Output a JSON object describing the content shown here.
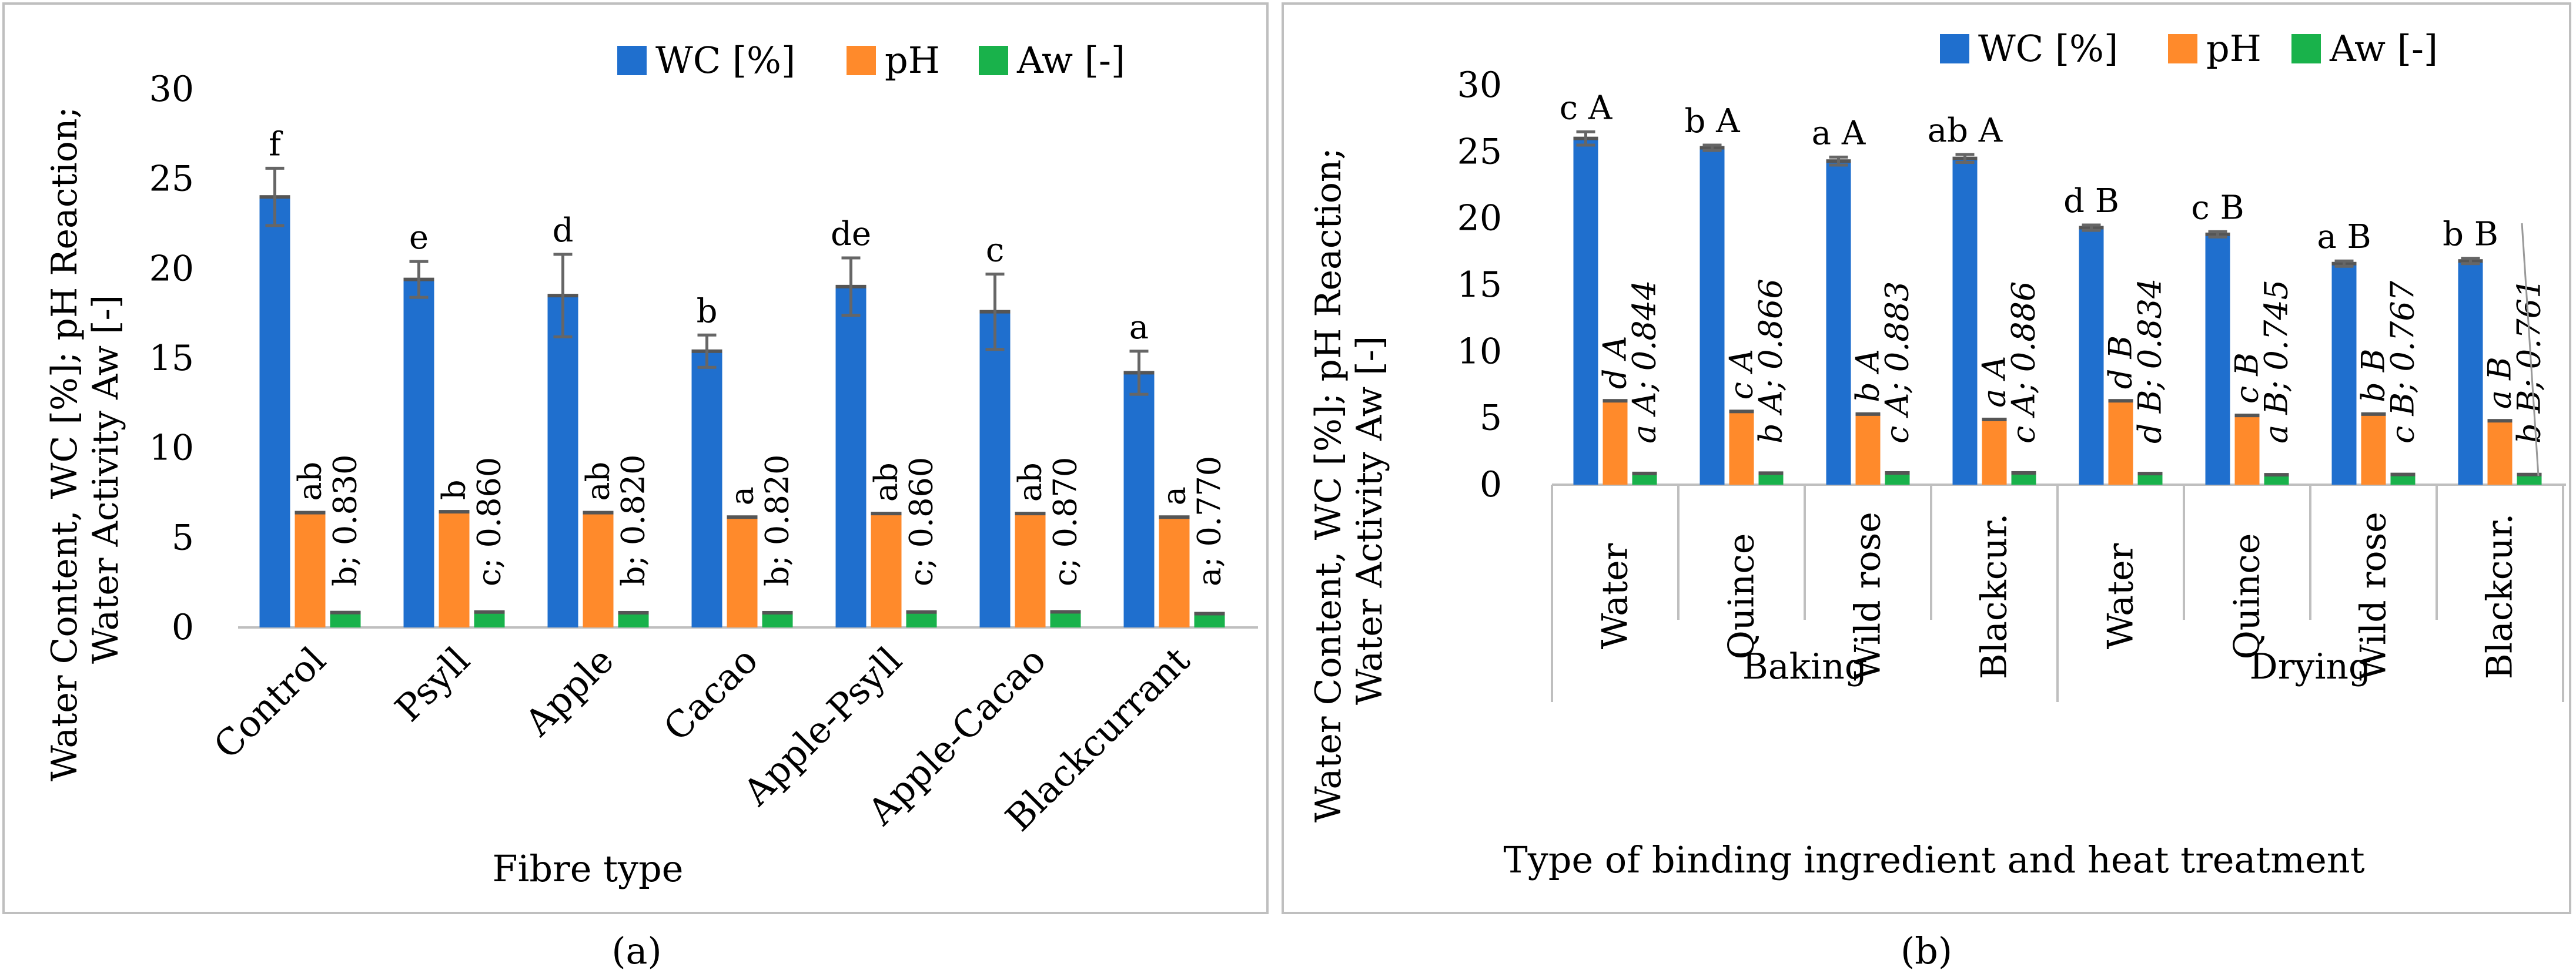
{
  "colors": {
    "wc": "#1f6fce",
    "ph": "#ff8a2b",
    "aw": "#19b24b",
    "err": "#666666",
    "frame": "#bfbfbf",
    "axis": "#bfbfbf",
    "text": "#000000"
  },
  "legend": {
    "wc": "WC [%]",
    "ph": "pH",
    "aw": "Aw [-]"
  },
  "chart_data": [
    {
      "type": "bar",
      "panel_label": "(a)",
      "ylabel_line1": "Water Content, WC [%]; pH Reaction;",
      "ylabel_line2": "Water Activity Aw [-]",
      "xlabel": "Fibre type",
      "ylim": [
        0,
        30
      ],
      "yticks": [
        0,
        5,
        10,
        15,
        20,
        25,
        30
      ],
      "categories": [
        "Control",
        "Psyll",
        "Apple",
        "Cacao",
        "Apple-Psyll",
        "Apple-Cacao",
        "Blackcurrant"
      ],
      "series": [
        {
          "name": "WC [%]",
          "values": [
            24.0,
            19.4,
            18.5,
            15.4,
            19.0,
            17.6,
            14.2
          ],
          "errors": [
            1.6,
            1.0,
            2.3,
            0.9,
            1.6,
            2.1,
            1.2
          ],
          "labels": [
            "f",
            "e",
            "d",
            "b",
            "de",
            "c",
            "a"
          ]
        },
        {
          "name": "pH",
          "values": [
            6.4,
            6.45,
            6.4,
            6.15,
            6.35,
            6.35,
            6.15
          ],
          "labels": [
            "ab",
            "b",
            "ab",
            "a",
            "ab",
            "ab",
            "a"
          ]
        },
        {
          "name": "Aw [-]",
          "values": [
            0.83,
            0.86,
            0.82,
            0.82,
            0.86,
            0.87,
            0.77
          ],
          "labels": [
            "b; 0.830",
            "c; 0.860",
            "b; 0.820",
            "b; 0.820",
            "c; 0.860",
            "c; 0.870",
            "a; 0.770"
          ]
        }
      ]
    },
    {
      "type": "bar",
      "panel_label": "(b)",
      "ylabel_line1": "Water Content, WC [%]; pH Reaction;",
      "ylabel_line2": "Water Activity Aw [-]",
      "xlabel": "Type of binding ingredient and heat treatment",
      "ylim": [
        0,
        30
      ],
      "yticks": [
        0,
        5,
        10,
        15,
        20,
        25,
        30
      ],
      "categories": [
        "Water",
        "Quince",
        "Wild rose",
        "Blackcur.",
        "Water",
        "Quince",
        "Wild rose",
        "Blackcur."
      ],
      "groups": [
        {
          "label": "Baking",
          "span": 4
        },
        {
          "label": "Drying",
          "span": 4
        }
      ],
      "series": [
        {
          "name": "WC [%]",
          "values": [
            26.0,
            25.3,
            24.3,
            24.5,
            19.3,
            18.8,
            16.6,
            16.8
          ],
          "errors": [
            0.5,
            0.2,
            0.3,
            0.3,
            0.2,
            0.2,
            0.2,
            0.2
          ],
          "labels": [
            "c A",
            "b A",
            "a A",
            "ab A",
            "d B",
            "c B",
            "a B",
            "b B"
          ]
        },
        {
          "name": "pH",
          "values": [
            6.3,
            5.5,
            5.3,
            4.9,
            6.3,
            5.2,
            5.3,
            4.8
          ],
          "labels": [
            "d A",
            "c A",
            "b A",
            "a A",
            "d B",
            "c B",
            "b B",
            "a B"
          ]
        },
        {
          "name": "Aw [-]",
          "values": [
            0.844,
            0.866,
            0.883,
            0.886,
            0.834,
            0.745,
            0.767,
            0.761
          ],
          "labels": [
            "a A; 0.844",
            "b A; 0.866",
            "c A; 0.883",
            "c A; 0.886",
            "d B; 0.834",
            "a B; 0.745",
            "c B; 0.767",
            "b B; 0.761"
          ]
        }
      ]
    }
  ]
}
